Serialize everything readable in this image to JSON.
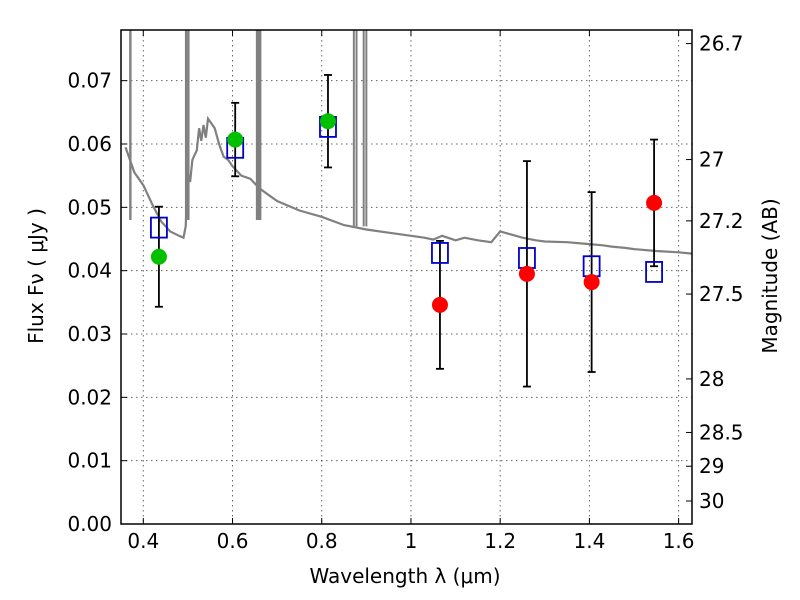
{
  "chart_data": {
    "type": "scatter",
    "xlabel": "Wavelength  λ (μm)",
    "ylabel": "Flux  Fν  ( μJy )",
    "y2label": "Magnitude (AB)",
    "xlim": [
      0.35,
      1.63
    ],
    "ylim": [
      0.0,
      0.078
    ],
    "grid": true,
    "x_ticks": [
      0.4,
      0.6,
      0.8,
      1.0,
      1.2,
      1.4,
      1.6
    ],
    "x_tick_labels": [
      "0.4",
      "0.6",
      "0.8",
      "1",
      "1.2",
      "1.4",
      "1.6"
    ],
    "y_ticks": [
      0.0,
      0.01,
      0.02,
      0.03,
      0.04,
      0.05,
      0.06,
      0.07
    ],
    "y_tick_labels": [
      "0.00",
      "0.01",
      "0.02",
      "0.03",
      "0.04",
      "0.05",
      "0.06",
      "0.07"
    ],
    "y2_tick_labels": [
      "26.7",
      "27",
      "27.2",
      "27.5",
      "28",
      "28.5",
      "29",
      "30"
    ],
    "series": [
      {
        "marker": "filled-circle",
        "color": "#00c000",
        "points": [
          {
            "x": 0.435,
            "y": 0.0422,
            "err": 0.0079
          },
          {
            "x": 0.606,
            "y": 0.0607,
            "err": 0.0058
          },
          {
            "x": 0.814,
            "y": 0.0636,
            "err": 0.0073
          }
        ]
      },
      {
        "marker": "filled-circle",
        "color": "#ff0000",
        "points": [
          {
            "x": 1.065,
            "y": 0.0346,
            "err": 0.0101
          },
          {
            "x": 1.26,
            "y": 0.0395,
            "err": 0.0178
          },
          {
            "x": 1.405,
            "y": 0.0382,
            "err": 0.0142
          },
          {
            "x": 1.545,
            "y": 0.0507,
            "err": 0.01
          }
        ]
      },
      {
        "marker": "open-square",
        "color": "#0000cc",
        "points": [
          {
            "x": 0.435,
            "y": 0.0468
          },
          {
            "x": 0.606,
            "y": 0.0594
          },
          {
            "x": 0.814,
            "y": 0.0627
          },
          {
            "x": 1.065,
            "y": 0.0428
          },
          {
            "x": 1.26,
            "y": 0.042
          },
          {
            "x": 1.405,
            "y": 0.0407
          },
          {
            "x": 1.545,
            "y": 0.0398
          }
        ]
      },
      {
        "type": "line",
        "color": "#808080",
        "x": [
          0.36,
          0.38,
          0.4,
          0.42,
          0.44,
          0.46,
          0.48,
          0.49,
          0.495,
          0.5,
          0.505,
          0.51,
          0.52,
          0.525,
          0.53,
          0.535,
          0.54,
          0.545,
          0.55,
          0.56,
          0.57,
          0.58,
          0.59,
          0.6,
          0.62,
          0.64,
          0.66,
          0.68,
          0.7,
          0.75,
          0.8,
          0.85,
          0.9,
          0.95,
          1.0,
          1.03,
          1.05,
          1.07,
          1.1,
          1.12,
          1.15,
          1.18,
          1.2,
          1.22,
          1.25,
          1.28,
          1.3,
          1.35,
          1.4,
          1.43,
          1.45,
          1.48,
          1.5,
          1.55,
          1.6,
          1.63
        ],
        "y": [
          0.0595,
          0.0555,
          0.0535,
          0.0505,
          0.0478,
          0.0462,
          0.0455,
          0.0452,
          0.047,
          0.0555,
          0.054,
          0.0575,
          0.059,
          0.0625,
          0.0605,
          0.063,
          0.061,
          0.064,
          0.0635,
          0.0625,
          0.06,
          0.058,
          0.0575,
          0.0565,
          0.055,
          0.0545,
          0.053,
          0.052,
          0.051,
          0.0495,
          0.0485,
          0.0472,
          0.0465,
          0.046,
          0.0455,
          0.0452,
          0.0449,
          0.0455,
          0.0448,
          0.0452,
          0.0448,
          0.0445,
          0.0462,
          0.0458,
          0.0452,
          0.0448,
          0.0446,
          0.0445,
          0.0442,
          0.044,
          0.0438,
          0.0436,
          0.0434,
          0.0431,
          0.0429,
          0.0427
        ]
      }
    ]
  }
}
